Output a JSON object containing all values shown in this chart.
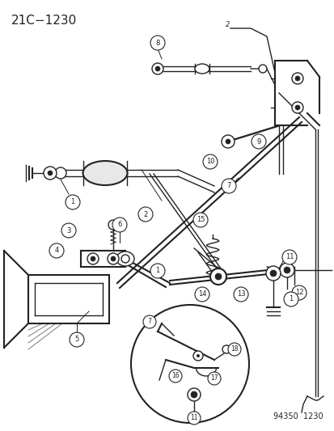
{
  "title": "21C−1230",
  "part_number": "94350  1230",
  "bg_color": "#ffffff",
  "line_color": "#222222",
  "title_fontsize": 11,
  "part_num_fontsize": 7,
  "fig_width": 4.14,
  "fig_height": 5.33,
  "dpi": 100
}
